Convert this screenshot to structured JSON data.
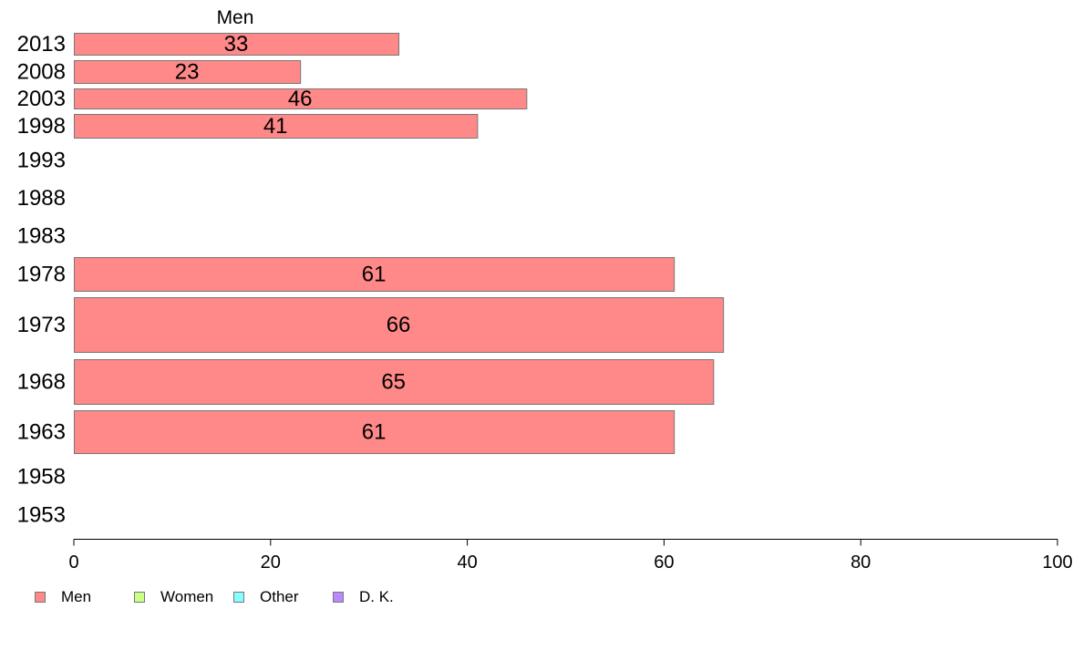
{
  "chart_data": {
    "type": "bar",
    "orientation": "horizontal",
    "column_header": "Men",
    "categories": [
      "2013",
      "2008",
      "2003",
      "1998",
      "1993",
      "1988",
      "1983",
      "1978",
      "1973",
      "1968",
      "1963",
      "1958",
      "1953"
    ],
    "series": [
      {
        "name": "Men",
        "values": [
          33,
          23,
          46,
          41,
          null,
          null,
          null,
          61,
          66,
          65,
          61,
          null,
          null
        ]
      }
    ],
    "xlim": [
      0,
      100
    ],
    "xticks": [
      0,
      20,
      40,
      60,
      80,
      100
    ],
    "grid": false,
    "legend_placement": "bottom-left",
    "legend": [
      {
        "label": "Men",
        "color": "#ff8888"
      },
      {
        "label": "Women",
        "color": "#ccff88"
      },
      {
        "label": "Other",
        "color": "#88ffff"
      },
      {
        "label": "D. K.",
        "color": "#bb88ff"
      }
    ],
    "bar_color": "#ff8888",
    "bar_stroke": "#777777"
  }
}
